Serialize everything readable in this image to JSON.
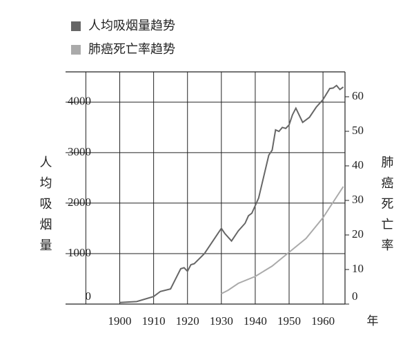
{
  "chart_data": {
    "type": "line",
    "legend": "top-left",
    "x_label": "年",
    "y_label": "人均吸烟量",
    "y2_label": "肺癌死亡率",
    "xlim": [
      1884,
      1966.5
    ],
    "xticks": [
      1900,
      1910,
      1920,
      1930,
      1940,
      1950,
      1960
    ],
    "xgrid": [
      1890,
      1900,
      1910,
      1920,
      1930,
      1940,
      1950,
      1960
    ],
    "ylim": [
      0,
      4600
    ],
    "yticks": [
      0,
      1000,
      2000,
      3000,
      4000
    ],
    "y2lim": [
      0,
      67.2
    ],
    "y2ticks": [
      0,
      10,
      20,
      30,
      40,
      50,
      60
    ],
    "grid": true,
    "series": [
      {
        "name": "人均吸烟量趋势",
        "color": "#666666",
        "x": [
          1900,
          1905,
          1910,
          1912,
          1915,
          1918,
          1919,
          1920,
          1921,
          1922,
          1925,
          1930,
          1931,
          1933,
          1935,
          1937,
          1938,
          1939,
          1940,
          1941,
          1944,
          1945,
          1946,
          1947,
          1948,
          1949,
          1950,
          1951,
          1952,
          1954,
          1955,
          1956,
          1958,
          1960,
          1962,
          1963,
          1964,
          1965,
          1966
        ],
        "values": [
          30,
          50,
          150,
          250,
          300,
          700,
          720,
          650,
          780,
          800,
          1000,
          1500,
          1400,
          1250,
          1450,
          1600,
          1750,
          1800,
          1950,
          2100,
          2950,
          3050,
          3450,
          3420,
          3500,
          3480,
          3550,
          3750,
          3880,
          3600,
          3650,
          3700,
          3900,
          4050,
          4270,
          4280,
          4330,
          4250,
          4300
        ]
      },
      {
        "name": "肺癌死亡率趋势",
        "color": "#aaaaaa",
        "axis": "y2",
        "x": [
          1930,
          1932,
          1935,
          1940,
          1945,
          1950,
          1955,
          1960,
          1966
        ],
        "values": [
          3,
          4,
          6,
          8,
          11,
          15,
          19,
          25,
          34
        ]
      }
    ]
  }
}
